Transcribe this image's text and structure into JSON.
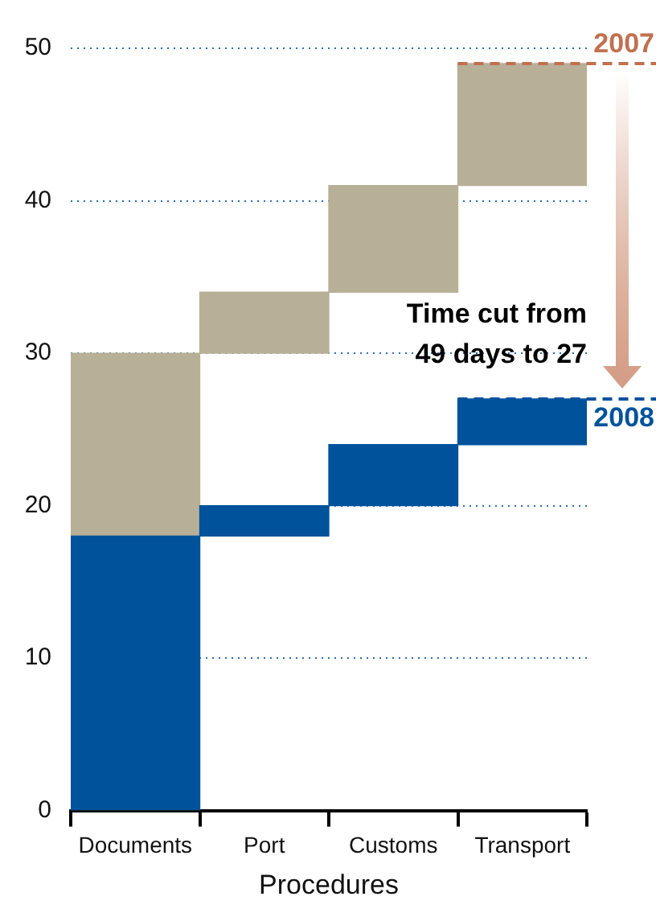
{
  "chart_data": {
    "type": "bar",
    "xlabel": "Procedures",
    "categories": [
      "Documents",
      "Port",
      "Customs",
      "Transport"
    ],
    "series": [
      {
        "name": "2007",
        "color": "#b8af97",
        "values": [
          30,
          4,
          7,
          8
        ],
        "base": [
          0,
          30,
          34,
          41
        ]
      },
      {
        "name": "2008",
        "color": "#00529b",
        "values": [
          18,
          2,
          4,
          3
        ],
        "base": [
          0,
          18,
          20,
          24
        ]
      }
    ],
    "ylim": [
      0,
      50
    ],
    "yticks": [
      0,
      10,
      20,
      30,
      40,
      50
    ],
    "grid": "y",
    "ref_lines": [
      {
        "axis": "y",
        "value": 49,
        "color": "#c0714f",
        "line_style": "dashed"
      },
      {
        "axis": "y",
        "value": 27,
        "color": "#00529b",
        "line_style": "dashed"
      }
    ],
    "annotations": [
      "Time cut from 49 days to 27"
    ]
  }
}
